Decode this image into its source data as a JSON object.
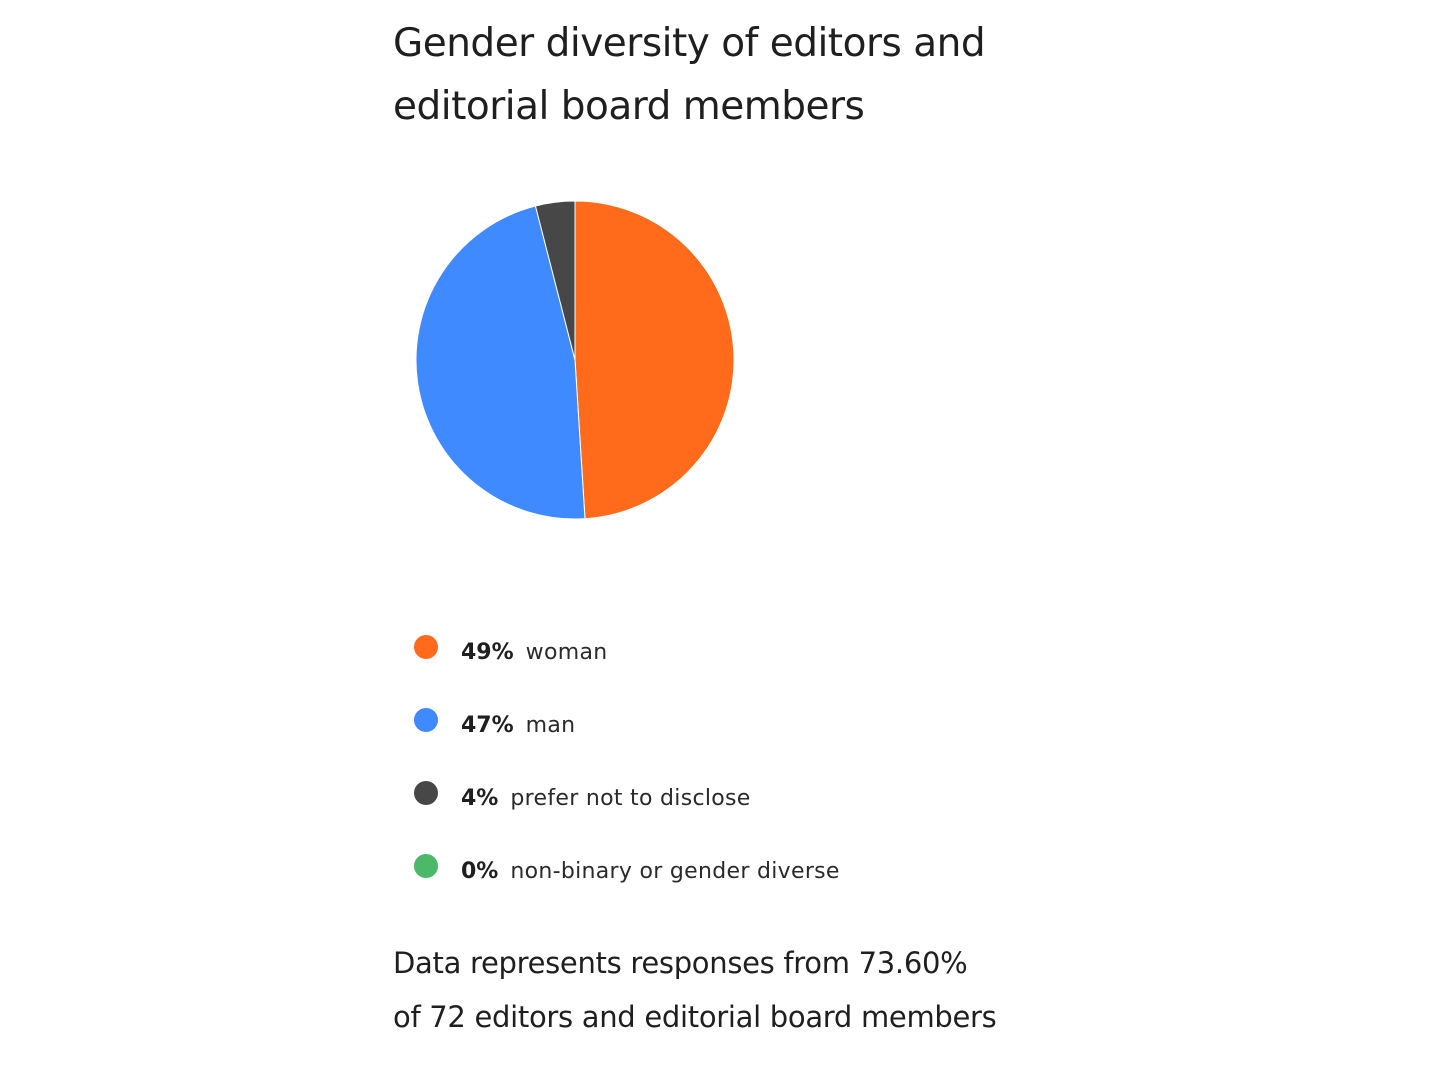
{
  "title": {
    "line1": "Gender diversity of editors and",
    "line2": "editorial board members"
  },
  "legend": {
    "items": [
      {
        "pct": "49%",
        "label": "woman",
        "color": "#FF6B1A"
      },
      {
        "pct": "47%",
        "label": "man",
        "color": "#3F8AFF"
      },
      {
        "pct": "4%",
        "label": "prefer not to disclose",
        "color": "#474747"
      },
      {
        "pct": "0%",
        "label": "non-binary or gender diverse",
        "color": "#4CB86A"
      }
    ]
  },
  "footnote": {
    "line1": "Data represents responses from 73.60%",
    "line2": "of 72 editors and editorial board members"
  },
  "chart_data": {
    "type": "pie",
    "title": "Gender diversity of editors and editorial board members",
    "categories": [
      "woman",
      "man",
      "prefer not to disclose",
      "non-binary or gender diverse"
    ],
    "values": [
      49,
      47,
      4,
      0
    ],
    "unit": "%",
    "colors": [
      "#FF6B1A",
      "#3F8AFF",
      "#474747",
      "#4CB86A"
    ],
    "start_angle_deg": 0,
    "direction": "clockwise",
    "legend_position": "bottom",
    "note": "Data represents responses from 73.60% of 72 editors and editorial board members"
  }
}
